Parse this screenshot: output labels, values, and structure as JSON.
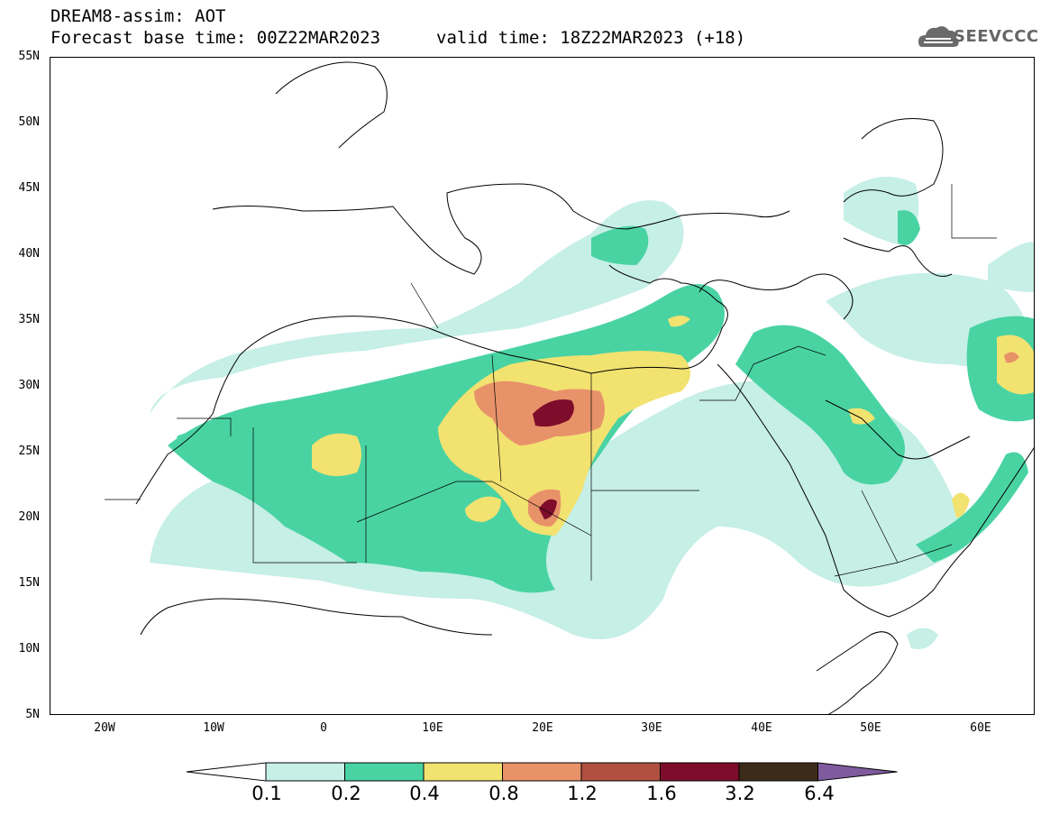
{
  "header": {
    "model_line": "DREAM8-assim: AOT",
    "base_time": "Forecast base time: 00Z22MAR2023",
    "valid_time": "valid time: 18Z22MAR2023 (+18)"
  },
  "logo": {
    "text": "SEEVCCC",
    "icon": "cloud-icon"
  },
  "map": {
    "lat_labels": [
      "55N",
      "50N",
      "45N",
      "40N",
      "35N",
      "30N",
      "25N",
      "20N",
      "15N",
      "10N",
      "5N"
    ],
    "lon_labels": [
      "20W",
      "10W",
      "0",
      "10E",
      "20E",
      "30E",
      "40E",
      "50E",
      "60E"
    ],
    "lon_range": [
      -25,
      65
    ],
    "lat_range": [
      5,
      55
    ],
    "variable": "AOT"
  },
  "colorbar": {
    "labels": [
      "0.1",
      "0.2",
      "0.4",
      "0.8",
      "1.2",
      "1.6",
      "3.2",
      "6.4"
    ],
    "colors": [
      "#ffffff",
      "#c6efe6",
      "#49d3a3",
      "#f2e270",
      "#e8926a",
      "#b1503f",
      "#7d0d2a",
      "#3d2b1a",
      "#7f5b9e"
    ]
  }
}
